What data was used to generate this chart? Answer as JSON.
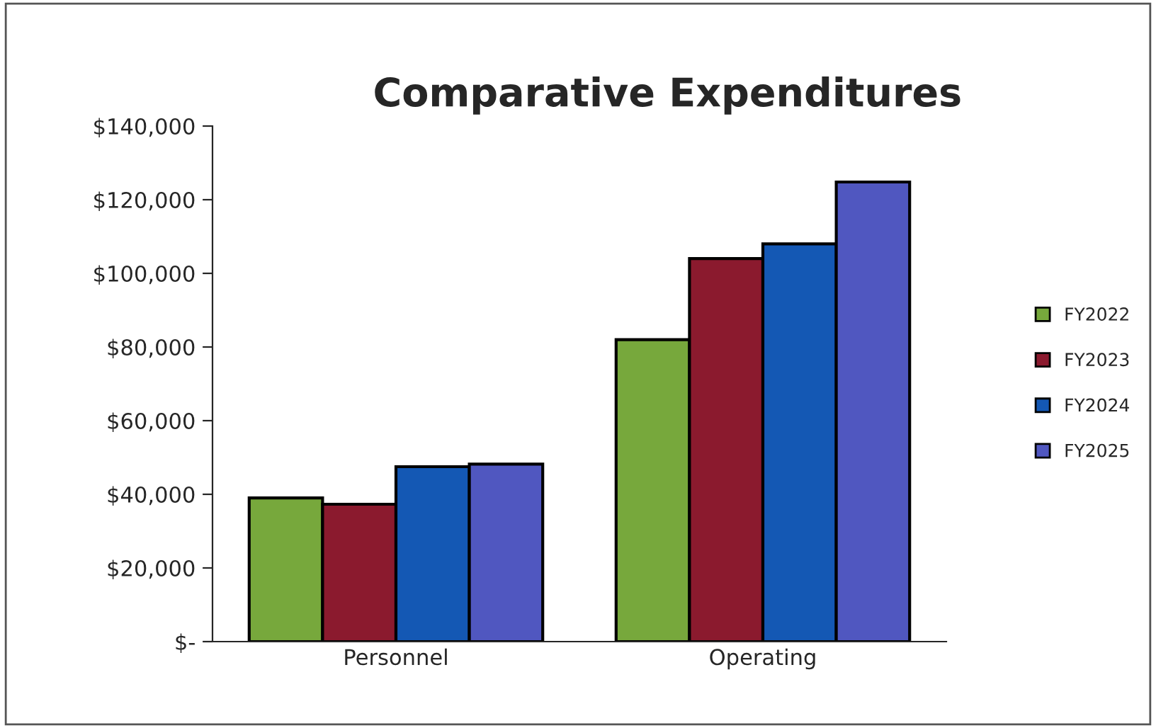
{
  "chart_data": {
    "type": "bar",
    "title": "Comparative Expenditures",
    "categories": [
      "Personnel",
      "Operating"
    ],
    "series": [
      {
        "name": "FY2022",
        "color": "#77a83c",
        "values": [
          39000,
          82000
        ]
      },
      {
        "name": "FY2023",
        "color": "#8b1a2e",
        "values": [
          37300,
          104000
        ]
      },
      {
        "name": "FY2024",
        "color": "#1458b4",
        "values": [
          47500,
          108000
        ]
      },
      {
        "name": "FY2025",
        "color": "#5057c0",
        "values": [
          48200,
          124800
        ]
      }
    ],
    "ylim": [
      0,
      140000
    ],
    "yticks": [
      {
        "value": 0,
        "label": "$-"
      },
      {
        "value": 20000,
        "label": "$20,000"
      },
      {
        "value": 40000,
        "label": "$40,000"
      },
      {
        "value": 60000,
        "label": "$60,000"
      },
      {
        "value": 80000,
        "label": "$80,000"
      },
      {
        "value": 100000,
        "label": "$100,000"
      },
      {
        "value": 120000,
        "label": "$120,000"
      },
      {
        "value": 140000,
        "label": "$140,000"
      }
    ],
    "grid": false,
    "legend": "right"
  }
}
